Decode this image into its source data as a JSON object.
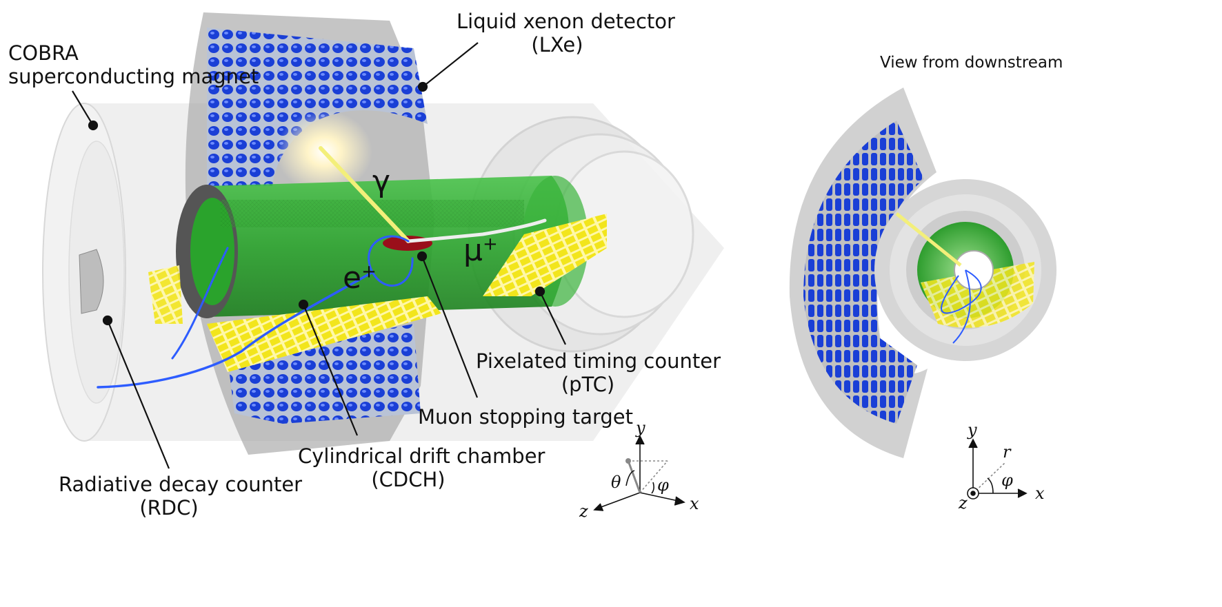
{
  "labels": {
    "cobra_line1": "COBRA",
    "cobra_line2": "superconducting magnet",
    "lxe_line1": "Liquid xenon detector",
    "lxe_line2": "(LXe)",
    "ptc_line1": "Pixelated timing counter",
    "ptc_line2": "(pTC)",
    "target": "Muon stopping target",
    "cdch_line1": "Cylindrical drift chamber",
    "cdch_line2": "(CDCH)",
    "rdc_line1": "Radiative decay counter",
    "rdc_line2": "(RDC)",
    "downstream": "View from downstream"
  },
  "particles": {
    "gamma": "γ",
    "positron": "e",
    "positron_sup": "+",
    "muon": "μ",
    "muon_sup": "+"
  },
  "axes_left": {
    "x": "x",
    "y": "y",
    "z": "z",
    "theta": "θ",
    "phi": "φ"
  },
  "axes_right": {
    "x": "x",
    "y": "y",
    "z": "z",
    "r": "r",
    "phi": "φ"
  },
  "colors": {
    "pmt_blue": "#1a3fd6",
    "drift_chamber_green": "#2fa82f",
    "timing_counter_yellow": "#f2e51c",
    "magnet_gray": "#cfcfcf",
    "target_red": "#9a0f1a",
    "track_blue": "#2d5cff"
  }
}
